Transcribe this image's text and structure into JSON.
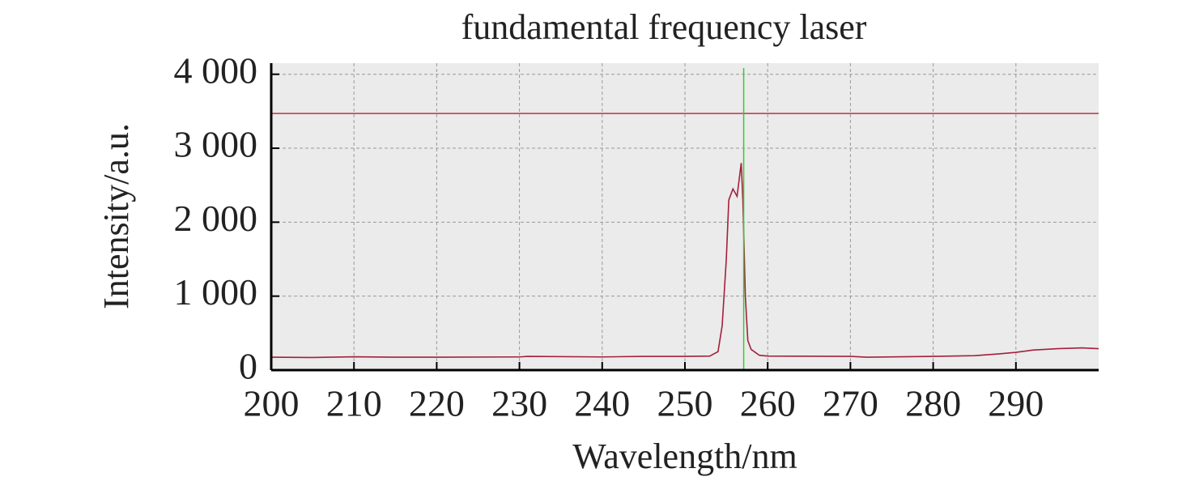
{
  "chart_data": {
    "type": "line",
    "title": "fundamental frequency laser",
    "x_label": "Wavelength/nm",
    "y_label": "Intensity/a.u.",
    "x": [
      200,
      205,
      210,
      215,
      220,
      230,
      231,
      240,
      245,
      250,
      253,
      254,
      254.5,
      255,
      255.3,
      255.8,
      256.3,
      256.8,
      257,
      257.3,
      257.6,
      258,
      259,
      260,
      270,
      272,
      280,
      285,
      288,
      290,
      292,
      295,
      298,
      300
    ],
    "values": [
      175,
      170,
      180,
      175,
      175,
      178,
      185,
      178,
      185,
      185,
      190,
      250,
      600,
      1500,
      2300,
      2450,
      2350,
      2800,
      2300,
      1000,
      400,
      280,
      200,
      190,
      185,
      175,
      185,
      195,
      220,
      240,
      270,
      290,
      300,
      290
    ],
    "color": "#a3203c",
    "xlim": [
      200,
      300
    ],
    "ylim": [
      0,
      4150
    ],
    "xticks": [
      200,
      210,
      220,
      230,
      240,
      250,
      260,
      270,
      280,
      290
    ],
    "yticks": [
      0,
      {
        "value": 1000,
        "label": "1 000"
      },
      {
        "value": 2000,
        "label": "2 000"
      },
      {
        "value": 3000,
        "label": "3 000"
      },
      {
        "value": 4000,
        "label": "4 000"
      }
    ],
    "grid": true,
    "hlines": [
      {
        "value": 3470,
        "color": "#c0304a"
      }
    ],
    "vlines": [
      {
        "value": 257.1,
        "color": "#33cc33"
      }
    ]
  }
}
